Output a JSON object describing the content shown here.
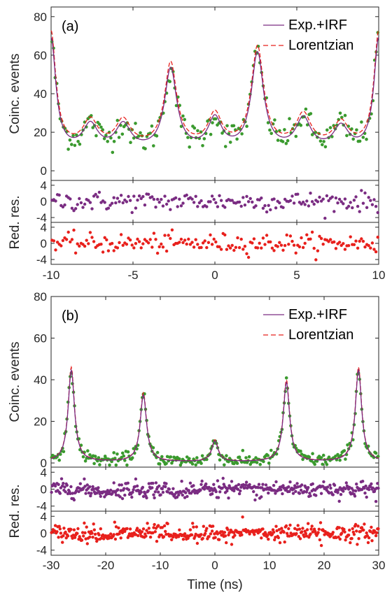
{
  "chart_data": [
    {
      "panel": "(a)",
      "type": "scatter",
      "xlim": [
        -10,
        10
      ],
      "xticks": [
        -10,
        -5,
        0,
        5,
        10
      ],
      "main": {
        "ylabel": "Coinc. events",
        "ylim": [
          -5,
          85
        ],
        "yticks": [
          0,
          20,
          40,
          60,
          80
        ],
        "legend": {
          "position": "top-right",
          "entries": [
            "Exp.+IRF",
            "Lorentzian"
          ]
        },
        "model": {
          "background": 10,
          "peaks": [
            {
              "x": -10.0,
              "amp": 58,
              "width": 0.35
            },
            {
              "x": -7.6,
              "amp": 13,
              "width": 0.55
            },
            {
              "x": -5.6,
              "amp": 13,
              "width": 0.55
            },
            {
              "x": -2.7,
              "amp": 42,
              "width": 0.45
            },
            {
              "x": 0.0,
              "amp": 16,
              "width": 0.5
            },
            {
              "x": 2.6,
              "amp": 50,
              "width": 0.45
            },
            {
              "x": 5.4,
              "amp": 16,
              "width": 0.55
            },
            {
              "x": 7.7,
              "amp": 12,
              "width": 0.55
            },
            {
              "x": 10.0,
              "amp": 58,
              "width": 0.35
            }
          ]
        },
        "series": [
          {
            "name": "Exp.+IRF",
            "style": "solid",
            "color": "#7a2c82"
          },
          {
            "name": "Lorentzian",
            "style": "dashed",
            "color": "#e8201c"
          },
          {
            "style": "points",
            "color": "#3a9a2e",
            "n": 200,
            "noise": 3.5
          }
        ]
      },
      "residuals": {
        "ylabel": "Red. res.",
        "yticks": [
          -4,
          0,
          4
        ],
        "ylim": [
          -5.2,
          5.2
        ],
        "series": [
          {
            "color": "#7a2c82",
            "n": 180,
            "spread": 1.2
          },
          {
            "color": "#e8201c",
            "n": 180,
            "spread": 1.2
          }
        ]
      }
    },
    {
      "panel": "(b)",
      "type": "scatter",
      "xlim": [
        -30,
        30
      ],
      "xticks": [
        -30,
        -20,
        -10,
        0,
        10,
        20,
        30
      ],
      "xlabel": "Time (ns)",
      "main": {
        "ylabel": "Coinc. events",
        "ylim": [
          -2,
          80
        ],
        "yticks": [
          0,
          20,
          40,
          60,
          80
        ],
        "legend": {
          "position": "top-right",
          "entries": [
            "Exp.+IRF",
            "Lorentzian"
          ]
        },
        "model": {
          "background": 0.5,
          "peaks": [
            {
              "x": -26.3,
              "amp": 44,
              "width": 0.7
            },
            {
              "x": -13.1,
              "amp": 32,
              "width": 0.7
            },
            {
              "x": 0.0,
              "amp": 10,
              "width": 0.7
            },
            {
              "x": 13.1,
              "amp": 38,
              "width": 0.7
            },
            {
              "x": 26.3,
              "amp": 44,
              "width": 0.7
            }
          ]
        },
        "series": [
          {
            "name": "Exp.+IRF",
            "style": "solid",
            "color": "#7a2c82"
          },
          {
            "name": "Lorentzian",
            "style": "dashed",
            "color": "#e8201c"
          },
          {
            "style": "points",
            "color": "#3a9a2e",
            "n": 300,
            "noise": 1.5
          }
        ]
      },
      "residuals": {
        "ylabel": "Red. res.",
        "yticks": [
          -4,
          0,
          4
        ],
        "ylim": [
          -5.2,
          5.2
        ],
        "series": [
          {
            "color": "#7a2c82",
            "n": 420,
            "spread": 1.0
          },
          {
            "color": "#e8201c",
            "n": 420,
            "spread": 1.0
          }
        ]
      }
    }
  ]
}
